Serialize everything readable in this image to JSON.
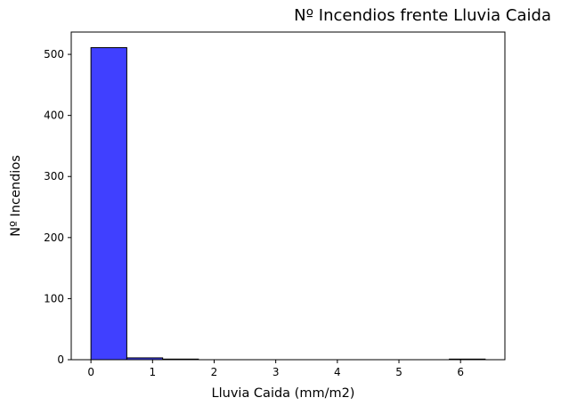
{
  "chart_data": {
    "type": "bar",
    "title": "Nº Incendios frente Lluvia Caida",
    "xlabel": "Lluvia Caida (mm/m2)",
    "ylabel": "Nº Incendios",
    "bin_edges": [
      0,
      0.582,
      1.164,
      1.745,
      2.327,
      2.909,
      3.491,
      4.073,
      4.655,
      5.236,
      5.818,
      6.4
    ],
    "values": [
      511,
      3,
      1,
      0,
      0,
      0,
      0,
      0,
      0,
      0,
      1
    ],
    "xlim": [
      -0.32,
      6.72
    ],
    "ylim": [
      0,
      536.55
    ],
    "xticks": [
      0,
      1,
      2,
      3,
      4,
      5,
      6
    ],
    "xtick_labels": [
      "0",
      "1",
      "2",
      "3",
      "4",
      "5",
      "6"
    ],
    "yticks": [
      0,
      100,
      200,
      300,
      400,
      500
    ],
    "ytick_labels": [
      "0",
      "100",
      "200",
      "300",
      "400",
      "500"
    ],
    "bar_color": "#4040ff",
    "bar_edge_color": "#000000",
    "grid": false
  }
}
